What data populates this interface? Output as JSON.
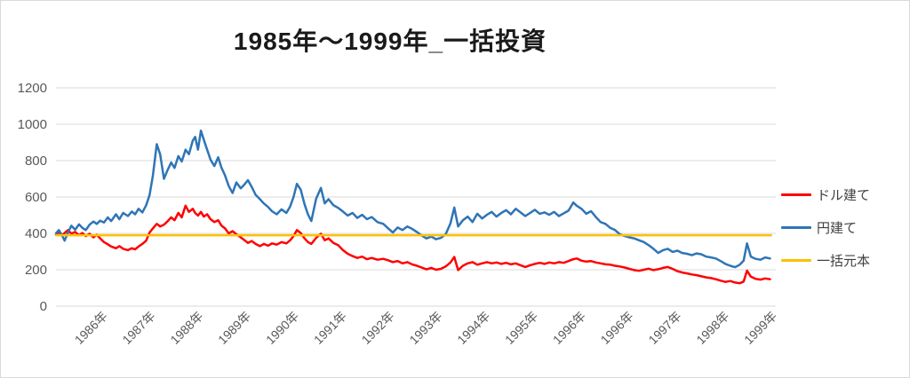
{
  "header": {
    "title": "1985年～1999年_一括投資"
  },
  "chart_data": {
    "type": "line",
    "title": "1985年～1999年_一括投資",
    "xlabel": "",
    "ylabel": "",
    "xlim": [
      1985.0,
      2000.0
    ],
    "ylim": [
      0,
      1200
    ],
    "y_ticks": [
      0,
      200,
      400,
      600,
      800,
      1000,
      1200
    ],
    "grid": "horizontal",
    "grid_color": "#D9D9D9",
    "axis_label_color": "#595959",
    "legend_position": "right",
    "x_ticks": [
      {
        "pos": 1985.997,
        "label": "1986年"
      },
      {
        "pos": 1986.993,
        "label": "1987年"
      },
      {
        "pos": 1987.99,
        "label": "1988年"
      },
      {
        "pos": 1988.986,
        "label": "1989年"
      },
      {
        "pos": 1989.983,
        "label": "1990年"
      },
      {
        "pos": 1990.979,
        "label": "1991年"
      },
      {
        "pos": 1991.976,
        "label": "1992年"
      },
      {
        "pos": 1992.972,
        "label": "1993年"
      },
      {
        "pos": 1993.969,
        "label": "1994年"
      },
      {
        "pos": 1994.965,
        "label": "1995年"
      },
      {
        "pos": 1995.962,
        "label": "1996年"
      },
      {
        "pos": 1996.958,
        "label": "1996年"
      },
      {
        "pos": 1997.955,
        "label": "1997年"
      },
      {
        "pos": 1998.951,
        "label": "1998年"
      },
      {
        "pos": 1999.948,
        "label": "1999年"
      }
    ],
    "x": [
      1985.0,
      1985.06,
      1985.12,
      1985.18,
      1985.25,
      1985.32,
      1985.4,
      1985.48,
      1985.55,
      1985.62,
      1985.7,
      1985.78,
      1985.85,
      1985.92,
      1986.0,
      1986.08,
      1986.15,
      1986.25,
      1986.32,
      1986.4,
      1986.5,
      1986.58,
      1986.65,
      1986.72,
      1986.8,
      1986.88,
      1986.95,
      1987.02,
      1987.1,
      1987.17,
      1987.25,
      1987.32,
      1987.4,
      1987.47,
      1987.55,
      1987.62,
      1987.7,
      1987.77,
      1987.85,
      1987.9,
      1987.96,
      1988.02,
      1988.08,
      1988.15,
      1988.22,
      1988.3,
      1988.38,
      1988.45,
      1988.52,
      1988.6,
      1988.68,
      1988.76,
      1988.85,
      1988.93,
      1989.0,
      1989.08,
      1989.16,
      1989.25,
      1989.33,
      1989.42,
      1989.5,
      1989.6,
      1989.7,
      1989.8,
      1989.88,
      1989.95,
      1990.02,
      1990.1,
      1990.18,
      1990.25,
      1990.32,
      1990.42,
      1990.52,
      1990.6,
      1990.68,
      1990.78,
      1990.88,
      1990.98,
      1991.08,
      1991.18,
      1991.28,
      1991.38,
      1991.48,
      1991.58,
      1991.7,
      1991.82,
      1991.92,
      1992.02,
      1992.12,
      1992.22,
      1992.32,
      1992.42,
      1992.52,
      1992.62,
      1992.72,
      1992.82,
      1992.92,
      1993.02,
      1993.12,
      1993.22,
      1993.3,
      1993.38,
      1993.48,
      1993.58,
      1993.68,
      1993.78,
      1993.88,
      1993.98,
      1994.08,
      1994.18,
      1994.28,
      1994.38,
      1994.48,
      1994.58,
      1994.68,
      1994.78,
      1994.88,
      1994.98,
      1995.08,
      1995.18,
      1995.28,
      1995.38,
      1995.48,
      1995.58,
      1995.68,
      1995.78,
      1995.85,
      1995.95,
      1996.05,
      1996.15,
      1996.25,
      1996.35,
      1996.45,
      1996.55,
      1996.65,
      1996.75,
      1996.85,
      1996.95,
      1997.05,
      1997.15,
      1997.25,
      1997.35,
      1997.45,
      1997.55,
      1997.65,
      1997.75,
      1997.85,
      1997.95,
      1998.05,
      1998.15,
      1998.25,
      1998.35,
      1998.45,
      1998.55,
      1998.65,
      1998.75,
      1998.85,
      1998.95,
      1999.05,
      1999.15,
      1999.25,
      1999.33,
      1999.4,
      1999.48,
      1999.58,
      1999.68,
      1999.78,
      1999.88
    ],
    "series": [
      {
        "id": "dollar",
        "name": "ドル建て",
        "color": "#FF0000",
        "values": [
          392,
          408,
          388,
          402,
          418,
          398,
          408,
          390,
          402,
          385,
          398,
          378,
          392,
          372,
          352,
          340,
          328,
          318,
          330,
          315,
          308,
          318,
          312,
          328,
          342,
          360,
          405,
          428,
          452,
          438,
          448,
          465,
          488,
          472,
          512,
          488,
          552,
          518,
          535,
          512,
          498,
          518,
          492,
          505,
          478,
          462,
          472,
          442,
          428,
          400,
          412,
          395,
          378,
          362,
          348,
          358,
          342,
          330,
          342,
          332,
          345,
          338,
          352,
          345,
          362,
          385,
          418,
          402,
          372,
          352,
          342,
          375,
          398,
          362,
          372,
          348,
          335,
          308,
          288,
          275,
          265,
          272,
          258,
          265,
          255,
          260,
          252,
          242,
          248,
          235,
          242,
          230,
          222,
          212,
          202,
          210,
          200,
          205,
          218,
          240,
          270,
          198,
          222,
          235,
          242,
          228,
          235,
          242,
          235,
          240,
          232,
          238,
          230,
          235,
          225,
          215,
          225,
          232,
          238,
          232,
          240,
          235,
          242,
          238,
          248,
          258,
          262,
          250,
          245,
          248,
          240,
          235,
          230,
          228,
          222,
          218,
          212,
          205,
          198,
          194,
          200,
          206,
          198,
          203,
          210,
          215,
          205,
          192,
          185,
          180,
          174,
          170,
          164,
          158,
          154,
          148,
          140,
          133,
          138,
          130,
          126,
          135,
          195,
          162,
          150,
          146,
          152,
          148
        ]
      },
      {
        "id": "yen",
        "name": "円建て",
        "color": "#2E75B6",
        "values": [
          400,
          418,
          392,
          360,
          405,
          442,
          420,
          450,
          430,
          418,
          448,
          465,
          452,
          470,
          460,
          488,
          468,
          505,
          478,
          512,
          495,
          520,
          505,
          535,
          515,
          555,
          610,
          720,
          890,
          835,
          700,
          745,
          790,
          760,
          825,
          795,
          860,
          835,
          910,
          930,
          860,
          965,
          915,
          860,
          805,
          770,
          818,
          760,
          720,
          660,
          622,
          680,
          648,
          670,
          692,
          655,
          612,
          588,
          565,
          545,
          522,
          505,
          532,
          512,
          548,
          600,
          672,
          640,
          560,
          505,
          468,
          590,
          650,
          565,
          588,
          555,
          540,
          520,
          498,
          512,
          485,
          502,
          478,
          490,
          462,
          452,
          428,
          405,
          432,
          418,
          438,
          425,
          408,
          388,
          372,
          382,
          368,
          375,
          395,
          455,
          542,
          438,
          472,
          492,
          462,
          508,
          482,
          502,
          518,
          492,
          512,
          528,
          505,
          535,
          515,
          495,
          512,
          530,
          508,
          515,
          502,
          518,
          495,
          510,
          525,
          570,
          552,
          535,
          508,
          522,
          490,
          462,
          452,
          430,
          418,
          395,
          385,
          378,
          372,
          362,
          352,
          335,
          315,
          292,
          308,
          315,
          298,
          305,
          292,
          288,
          280,
          290,
          285,
          272,
          268,
          262,
          248,
          232,
          222,
          214,
          228,
          250,
          345,
          272,
          260,
          255,
          268,
          262
        ]
      },
      {
        "id": "principal",
        "name": "一括元本",
        "color": "#FFC000",
        "x": [
          1985.0,
          1999.9
        ],
        "values": [
          390,
          390
        ]
      }
    ]
  }
}
